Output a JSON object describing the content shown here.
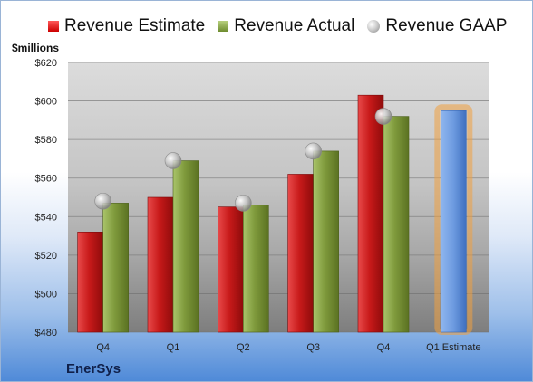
{
  "legend": {
    "estimate": "Revenue Estimate",
    "actual": "Revenue Actual",
    "gaap": "Revenue GAAP"
  },
  "unit_label": "$millions",
  "company": "EnerSys",
  "colors": {
    "estimate": "#cc1f1f",
    "actual": "#7f9a3c",
    "gaap": "#b8b8b8",
    "estimate_future": "#6d9be0",
    "estimate_future_glow": "#f0a040"
  },
  "chart_data": {
    "type": "bar",
    "categories": [
      "Q4",
      "Q1",
      "Q2",
      "Q3",
      "Q4",
      "Q1 Estimate"
    ],
    "ylim": [
      480,
      620
    ],
    "yticks": [
      480,
      500,
      520,
      540,
      560,
      580,
      600,
      620
    ],
    "ytick_labels": [
      "$480",
      "$500",
      "$520",
      "$540",
      "$560",
      "$580",
      "$600",
      "$620"
    ],
    "grid": true,
    "legend_position": "top",
    "series": [
      {
        "name": "Revenue Estimate",
        "values": [
          532,
          550,
          545,
          562,
          603,
          595
        ]
      },
      {
        "name": "Revenue Actual",
        "values": [
          547,
          569,
          546,
          574,
          592,
          null
        ]
      },
      {
        "name": "Revenue GAAP",
        "values": [
          548,
          569,
          547,
          574,
          592,
          null
        ]
      }
    ]
  }
}
